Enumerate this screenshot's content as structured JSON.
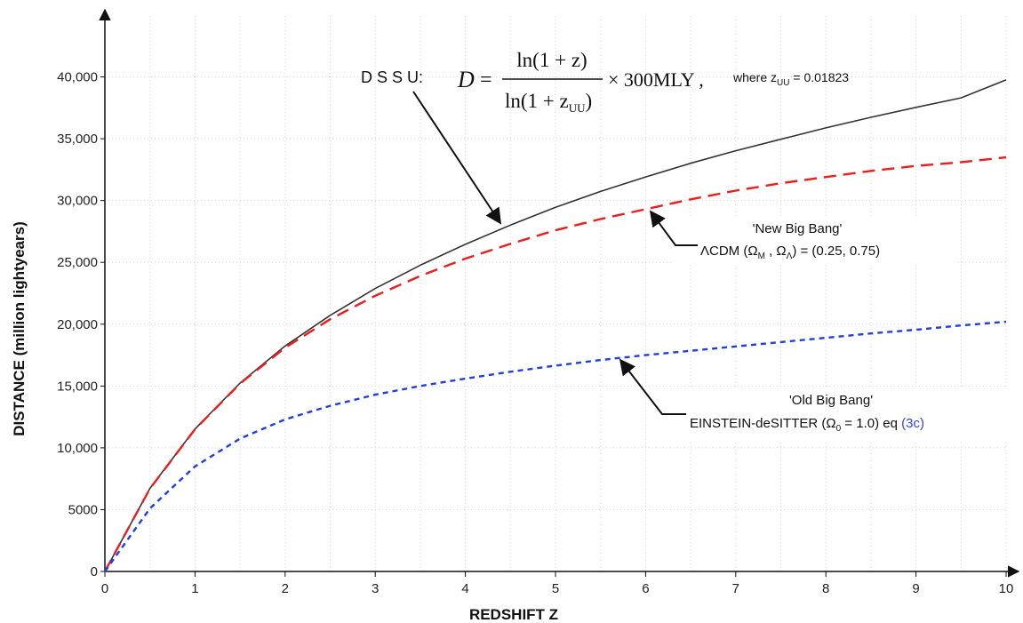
{
  "chart_data": {
    "type": "line",
    "xlabel": "REDSHIFT  Z",
    "ylabel": "DISTANCE   (million lightyears)",
    "xlim": [
      0,
      10
    ],
    "ylim": [
      0,
      45000
    ],
    "grid": true,
    "x_ticks": [
      "0",
      "1",
      "2",
      "3",
      "4",
      "5",
      "6",
      "7",
      "8",
      "9",
      "10"
    ],
    "y_ticks": [
      {
        "value": 0,
        "label": "0"
      },
      {
        "value": 5000,
        "label": "5000"
      },
      {
        "value": 10000,
        "label": "10,000"
      },
      {
        "value": 15000,
        "label": "15,000"
      },
      {
        "value": 20000,
        "label": "20,000"
      },
      {
        "value": 25000,
        "label": "25,000"
      },
      {
        "value": 30000,
        "label": "30,000"
      },
      {
        "value": 35000,
        "label": "35,000"
      },
      {
        "value": 40000,
        "label": "40,000"
      }
    ],
    "x": [
      0,
      0.5,
      1,
      1.5,
      2,
      2.5,
      3,
      3.5,
      4,
      4.5,
      5,
      5.5,
      6,
      6.5,
      7,
      7.5,
      8,
      8.5,
      9,
      9.5,
      10
    ],
    "series": [
      {
        "key": "dssu",
        "color": "#333333",
        "style": "solid",
        "values": [
          0,
          6720,
          11520,
          15240,
          18240,
          20720,
          22890,
          24770,
          26460,
          28010,
          29450,
          30740,
          31910,
          33020,
          34030,
          34960,
          35880,
          36730,
          37540,
          38310,
          39760
        ]
      },
      {
        "key": "lcdm",
        "color": "#ee1c1c",
        "style": "long-dash",
        "values": [
          0,
          6700,
          11500,
          15200,
          18100,
          20400,
          22300,
          23900,
          25300,
          26500,
          27600,
          28500,
          29300,
          30100,
          30800,
          31400,
          31900,
          32400,
          32800,
          33100,
          33500
        ]
      },
      {
        "key": "eds",
        "color": "#1e3fe6",
        "style": "short-dash",
        "values": [
          0,
          5100,
          8500,
          10750,
          12300,
          13400,
          14300,
          15000,
          15600,
          16150,
          16650,
          17100,
          17500,
          17850,
          18200,
          18550,
          18900,
          19250,
          19550,
          19900,
          20200
        ]
      }
    ],
    "annotations": {
      "dssu_label": "D S S U:",
      "formula_D": "D",
      "formula_eq": "=",
      "formula_num": "ln(1 + z)",
      "formula_den_main": "ln(1 + z",
      "formula_den_sub": "UU",
      "formula_den_close": ")",
      "formula_tail": "× 300MLY ,",
      "where_main": "where z",
      "where_sub": "UU",
      "where_val": " = 0.01823",
      "new_bb_title": "'New Big Bang'",
      "lcdm_main": "ΛCDM (Ω",
      "lcdm_sub_m": "M",
      "lcdm_mid": " , Ω",
      "lcdm_sub_l": "Λ",
      "lcdm_tail": ") = (0.25, 0.75)",
      "old_bb_title": "'Old Big Bang'",
      "eds_main": "EINSTEIN-deSITTER (Ω",
      "eds_sub": "0",
      "eds_tail": " = 1.0) eq ",
      "eds_ref": "(3c)",
      "eds_ref_color": "#3344ee"
    }
  }
}
